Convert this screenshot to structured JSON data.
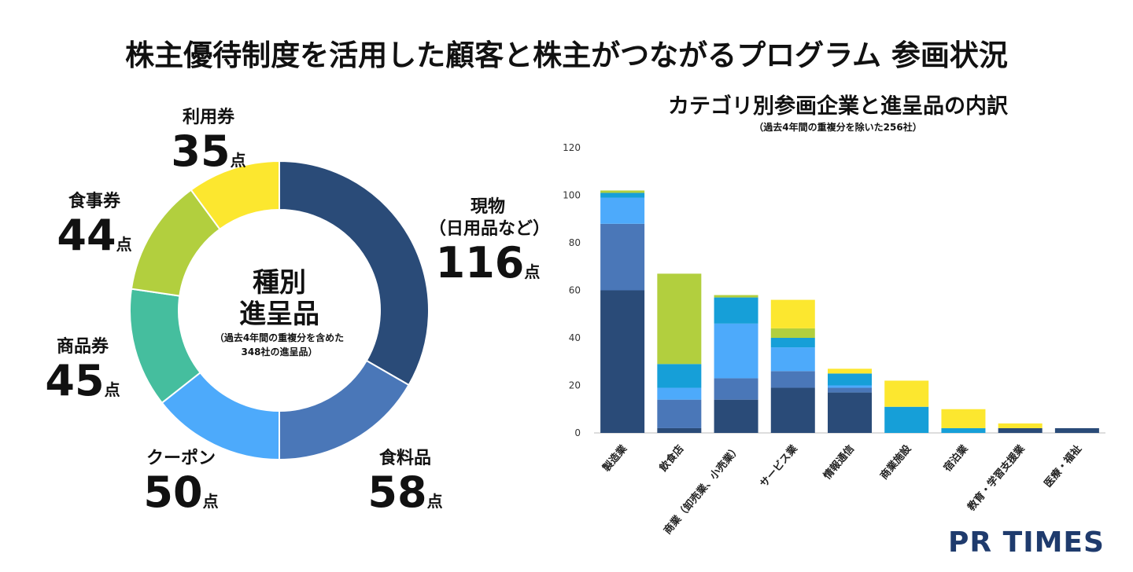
{
  "title": "株主優待制度を活用した顧客と株主がつながるプログラム 参画状況",
  "chart_data": [
    {
      "type": "pie",
      "donut": true,
      "center_title_1": "種別",
      "center_title_2": "進呈品",
      "center_note_1": "（過去4年間の重複分を含めた",
      "center_note_2": "348社の進呈品）",
      "unit": "点",
      "slices": [
        {
          "label": "現物",
          "sublabel": "（日用品など）",
          "value": 116,
          "value_text": "116",
          "color": "#2a4b78"
        },
        {
          "label": "食料品",
          "sublabel": "",
          "value": 58,
          "value_text": "58",
          "color": "#4a77b8"
        },
        {
          "label": "クーポン",
          "sublabel": "",
          "value": 50,
          "value_text": "50",
          "color": "#4daafb"
        },
        {
          "label": "商品券",
          "sublabel": "",
          "value": 45,
          "value_text": "45",
          "color": "#45be9e"
        },
        {
          "label": "食事券",
          "sublabel": "",
          "value": 44,
          "value_text": "44",
          "color": "#b2cf3e"
        },
        {
          "label": "利用券",
          "sublabel": "",
          "value": 35,
          "value_text": "35",
          "color": "#fce72f"
        }
      ]
    },
    {
      "type": "bar",
      "stacked": true,
      "title": "カテゴリ別参画企業と進呈品の内訳",
      "subtitle": "（過去4年間の重複分を除いた256社）",
      "ylim": [
        0,
        120
      ],
      "yticks": [
        0,
        20,
        40,
        60,
        80,
        100,
        120
      ],
      "categories": [
        "製造業",
        "飲食店",
        "商業（卸売業、小売業）",
        "サービス業",
        "情報通信",
        "商業施設",
        "宿泊業",
        "教育・学習支援業",
        "医療・福祉"
      ],
      "series": [
        {
          "name": "現物",
          "color": "#2a4b78",
          "values": [
            60,
            2,
            14,
            19,
            17,
            0,
            0,
            2,
            2
          ]
        },
        {
          "name": "食料品",
          "color": "#4a77b8",
          "values": [
            28,
            12,
            9,
            7,
            2,
            0,
            0,
            0,
            0
          ]
        },
        {
          "name": "クーポン",
          "color": "#4daafb",
          "values": [
            11,
            5,
            23,
            10,
            1,
            0,
            0,
            0,
            0
          ]
        },
        {
          "name": "商品券",
          "color": "#169fd8",
          "values": [
            2,
            10,
            11,
            4,
            5,
            11,
            2,
            0,
            0
          ]
        },
        {
          "name": "食事券",
          "color": "#b2cf3e",
          "values": [
            1,
            38,
            1,
            4,
            0,
            0,
            0,
            0,
            0
          ]
        },
        {
          "name": "利用券",
          "color": "#fce72f",
          "values": [
            0,
            0,
            0,
            12,
            2,
            11,
            8,
            2,
            0
          ]
        }
      ]
    }
  ],
  "logo": "PR TIMES"
}
